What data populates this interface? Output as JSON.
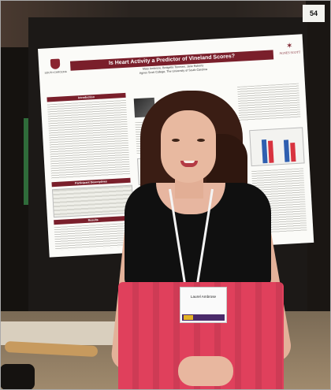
{
  "board_number": "54",
  "poster": {
    "title": "Is Heart Activity a Predictor of Vineland Scores?",
    "authors": "Mary Ambrose, Bridgette Tonnsen, Jane Roberts",
    "affiliation": "Agnes Scott College, The University of South Carolina",
    "left_logo_label": "SOUTH CAROLINA",
    "right_logo_label": "AGNES SCOTT",
    "sections": [
      "Introduction",
      "Participant Descriptives",
      "Results"
    ],
    "bar_colors": [
      "#2f5fb0",
      "#d8333f"
    ]
  },
  "badge": {
    "name": "Laurel Ambrose"
  },
  "colors": {
    "poster_accent": "#7a1f2b",
    "skirt": "#e0405c",
    "top": "#101010"
  }
}
